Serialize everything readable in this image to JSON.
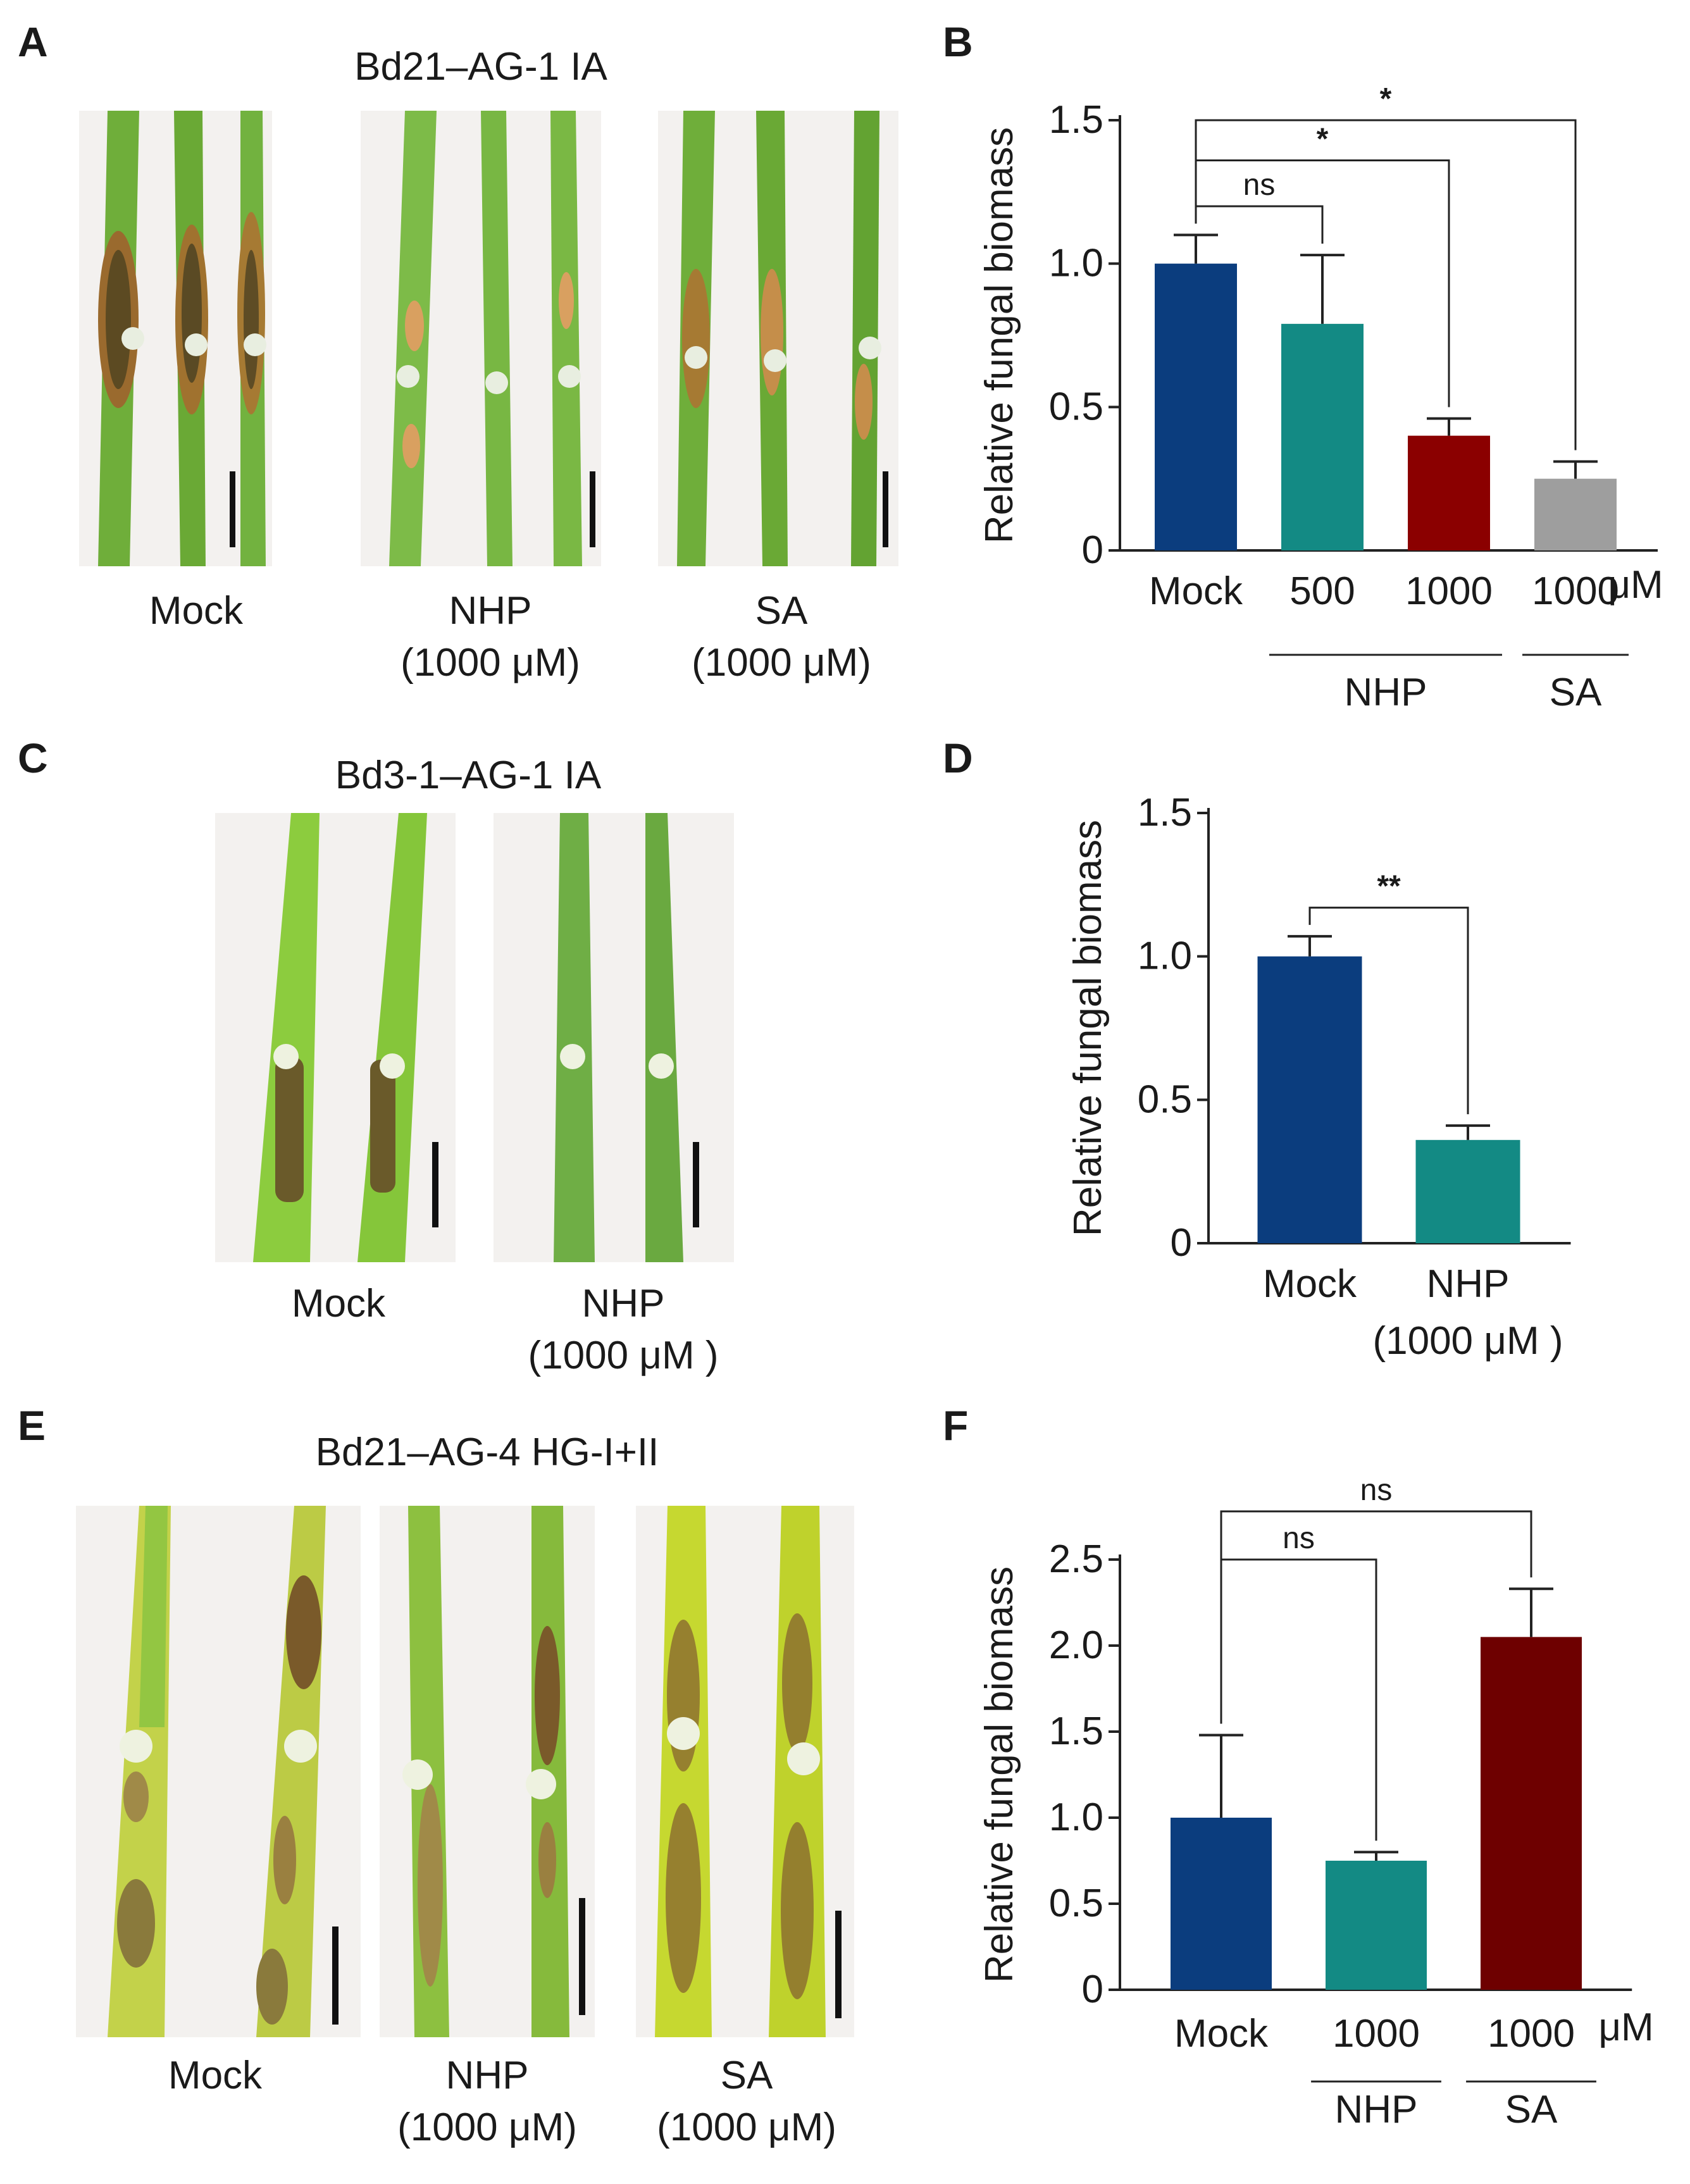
{
  "panels": {
    "A": {
      "label": "A",
      "title": "Bd21–AG-1 IA",
      "captions": [
        {
          "line1": "Mock",
          "line2": ""
        },
        {
          "line1": "NHP",
          "line2": "(1000 μM)"
        },
        {
          "line1": "SA",
          "line2": "(1000 μM)"
        }
      ]
    },
    "B": {
      "label": "B"
    },
    "C": {
      "label": "C",
      "title": "Bd3-1–AG-1 IA",
      "captions": [
        {
          "line1": "Mock",
          "line2": ""
        },
        {
          "line1": "NHP",
          "line2": "(1000 μM )"
        }
      ]
    },
    "D": {
      "label": "D"
    },
    "E": {
      "label": "E",
      "title": "Bd21–AG-4 HG-I+II",
      "captions": [
        {
          "line1": "Mock",
          "line2": ""
        },
        {
          "line1": "NHP",
          "line2": "(1000 μM)"
        },
        {
          "line1": "SA",
          "line2": "(1000 μM)"
        }
      ]
    },
    "F": {
      "label": "F"
    }
  },
  "colors": {
    "mock": "#0b3d7e",
    "nhp": "#138a84",
    "nhp_high": "#8b0000",
    "sa": "#9e9e9e",
    "sa_f": "#6e0000"
  },
  "chart_data": [
    {
      "id": "B",
      "type": "bar",
      "ylabel": "Relative fungal biomass",
      "ylim": [
        0,
        1.5
      ],
      "yticks": [
        0,
        0.5,
        1.0,
        1.5
      ],
      "ytick_labels": [
        "0",
        "0.5",
        "1.0",
        "1.5"
      ],
      "categories": [
        "Mock",
        "500",
        "1000",
        "1000"
      ],
      "values": [
        1.0,
        0.79,
        0.4,
        0.25
      ],
      "errors": [
        0.1,
        0.24,
        0.06,
        0.06
      ],
      "bar_colors": [
        "#0b3d7e",
        "#138a84",
        "#8b0000",
        "#9e9e9e"
      ],
      "unit": "μM",
      "groups": [
        {
          "label": "NHP",
          "from": 1,
          "to": 2
        },
        {
          "label": "SA",
          "from": 3,
          "to": 3
        }
      ],
      "significance": [
        {
          "from": 0,
          "to": 1,
          "label": "ns",
          "y": 1.2
        },
        {
          "from": 0,
          "to": 2,
          "label": "*",
          "y": 1.36
        },
        {
          "from": 0,
          "to": 3,
          "label": "*",
          "y": 1.5
        }
      ]
    },
    {
      "id": "D",
      "type": "bar",
      "ylabel": "Relative fungal biomass",
      "ylim": [
        0,
        1.5
      ],
      "yticks": [
        0,
        0.5,
        1.0,
        1.5
      ],
      "ytick_labels": [
        "0",
        "0.5",
        "1.0",
        "1.5"
      ],
      "categories": [
        "Mock",
        "NHP"
      ],
      "category_sublabels": [
        "",
        "(1000 μM )"
      ],
      "values": [
        1.0,
        0.36
      ],
      "errors": [
        0.07,
        0.05
      ],
      "bar_colors": [
        "#0b3d7e",
        "#138a84"
      ],
      "unit": "",
      "groups": [],
      "significance": [
        {
          "from": 0,
          "to": 1,
          "label": "**",
          "y": 1.17
        }
      ]
    },
    {
      "id": "F",
      "type": "bar",
      "ylabel": "Relative fungal biomass",
      "ylim": [
        0,
        2.5
      ],
      "yticks": [
        0,
        0.5,
        1.0,
        1.5,
        2.0,
        2.5
      ],
      "ytick_labels": [
        "0",
        "0.5",
        "1.0",
        "1.5",
        "2.0",
        "2.5"
      ],
      "categories": [
        "Mock",
        "1000",
        "1000"
      ],
      "values": [
        1.0,
        0.75,
        2.05
      ],
      "errors": [
        0.48,
        0.05,
        0.28
      ],
      "bar_colors": [
        "#0b3d7e",
        "#138a84",
        "#6e0000"
      ],
      "unit": "μM",
      "groups": [
        {
          "label": "NHP",
          "from": 1,
          "to": 1
        },
        {
          "label": "SA",
          "from": 2,
          "to": 2
        }
      ],
      "significance": [
        {
          "from": 0,
          "to": 1,
          "label": "ns",
          "y": 2.5
        },
        {
          "from": 0,
          "to": 2,
          "label": "ns",
          "y": 2.78
        }
      ]
    }
  ]
}
